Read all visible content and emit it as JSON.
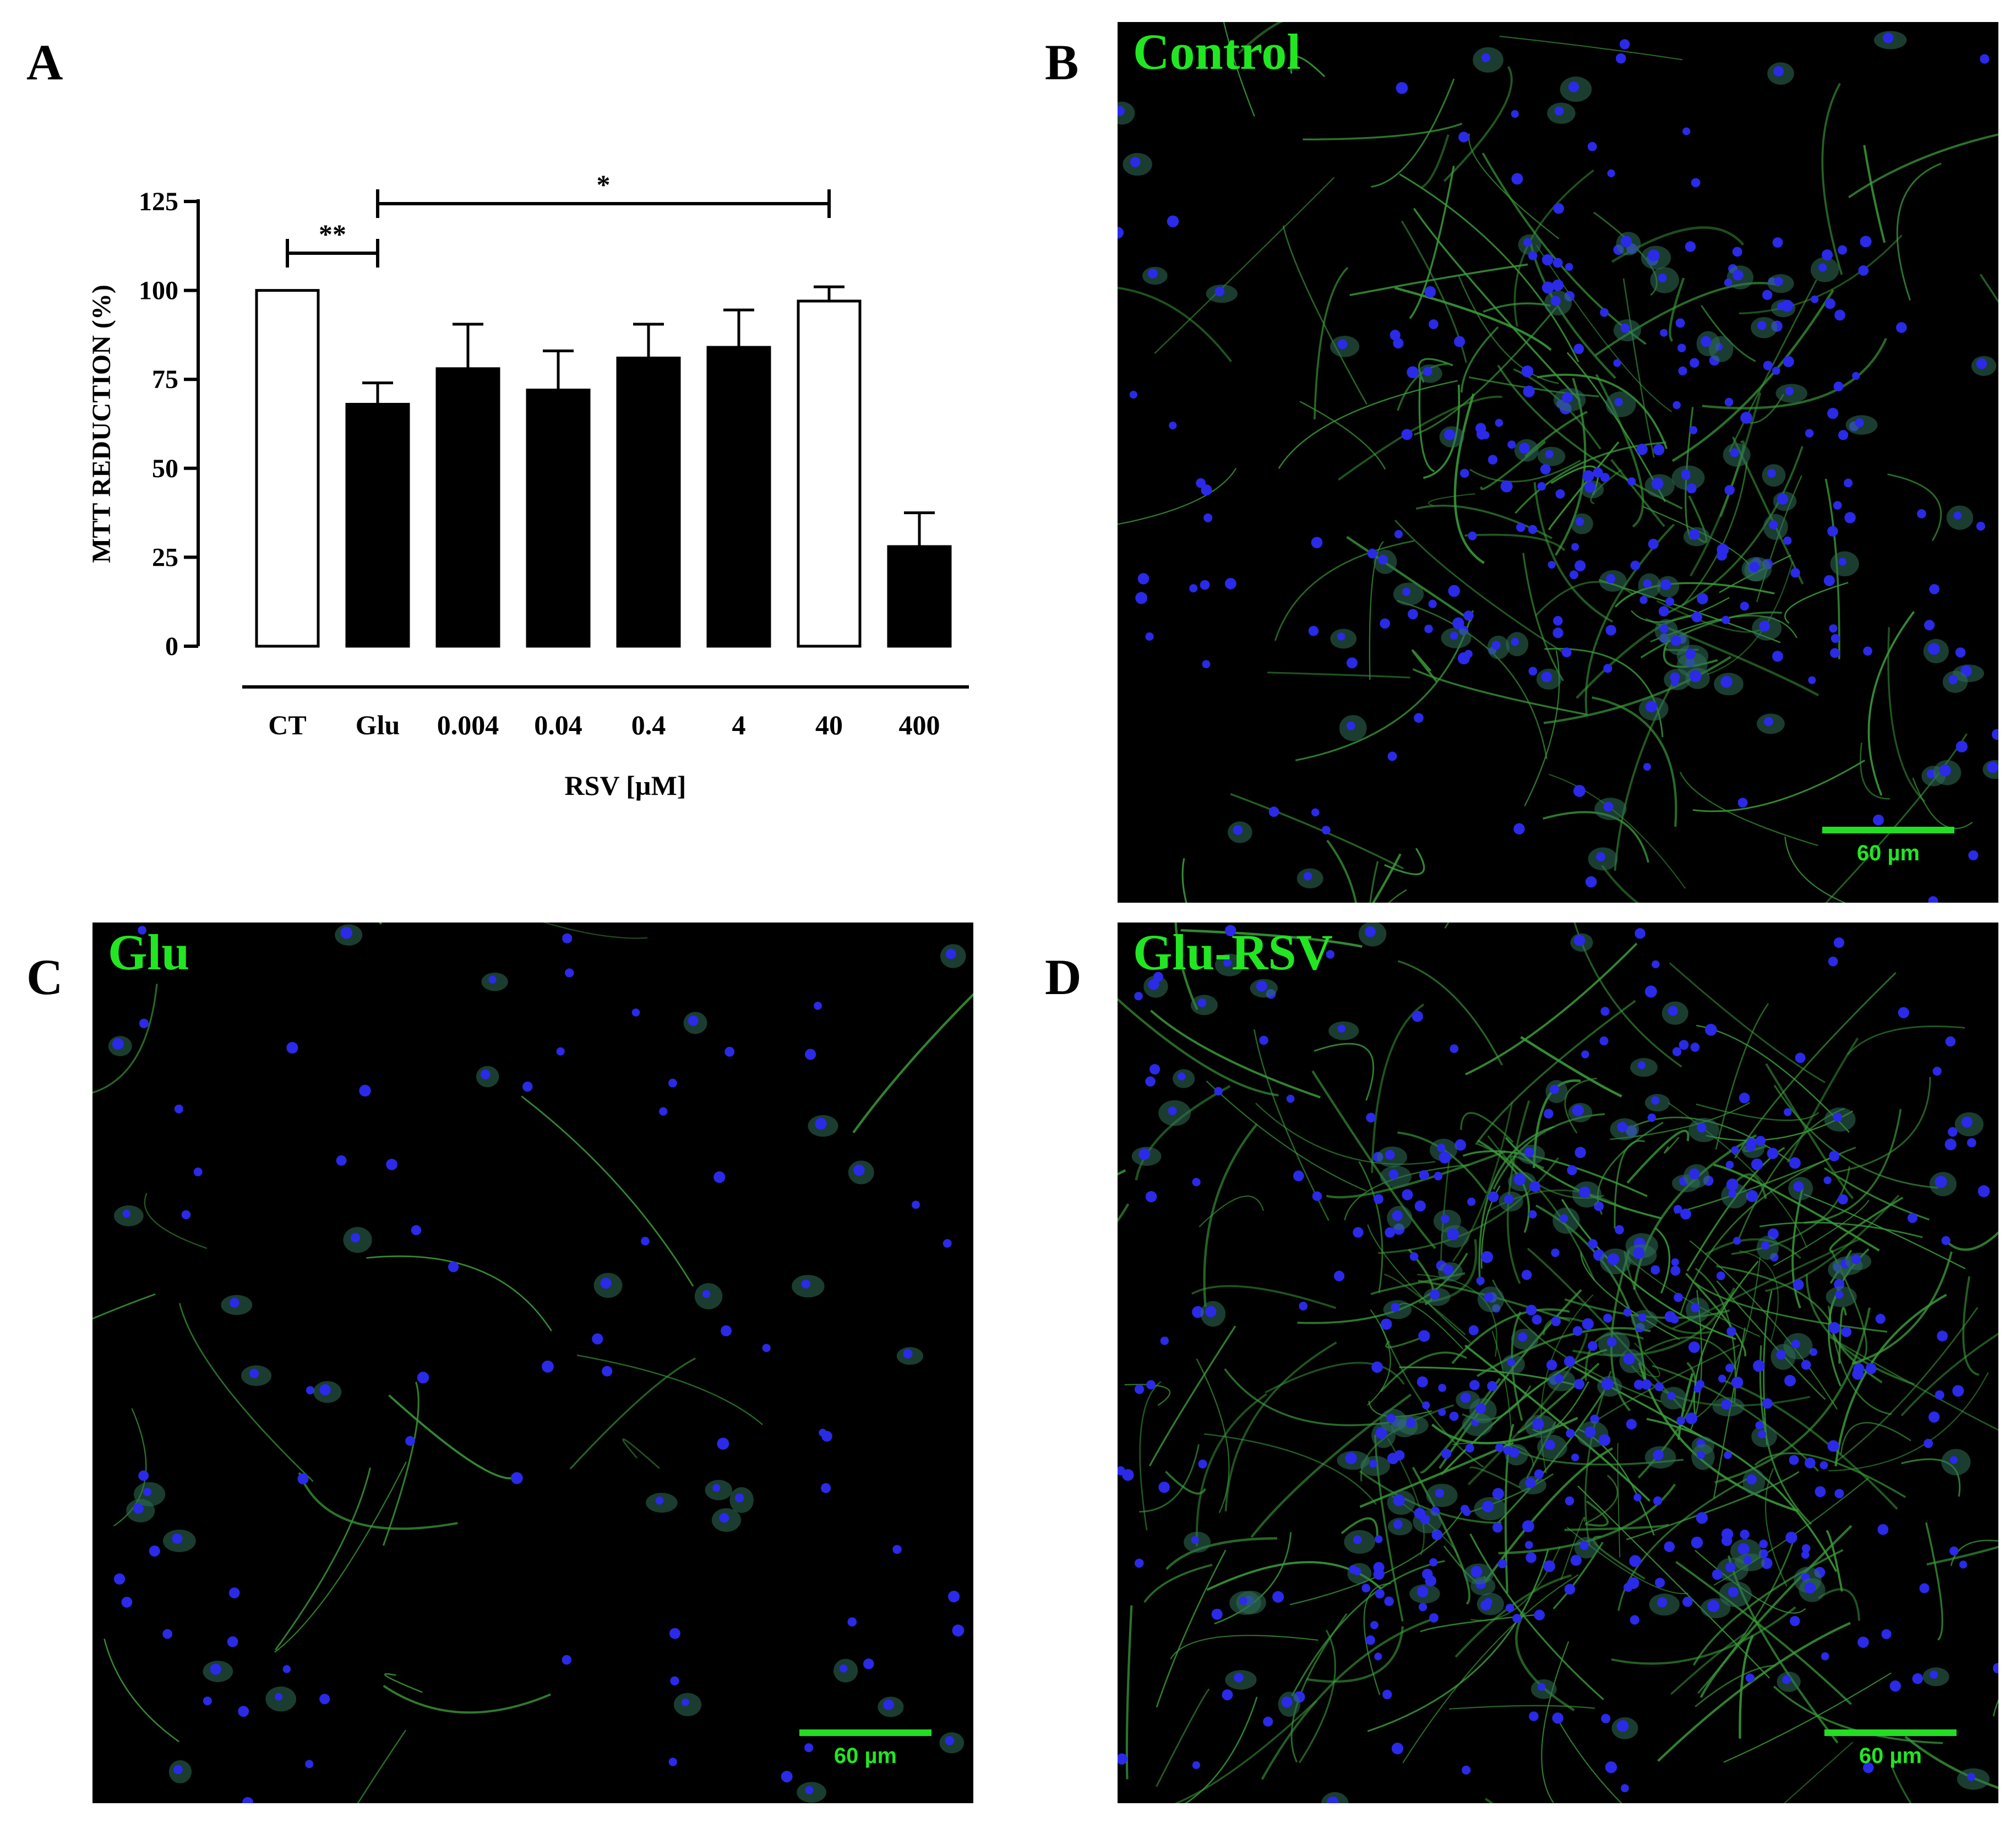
{
  "colors": {
    "micro_label": "#22e622",
    "nuclei": "#2a2ae8",
    "neurites": "#3a9a3a",
    "scalebar": "#22dd22"
  },
  "panels": {
    "A": {
      "letter": "A"
    },
    "B": {
      "letter": "B",
      "title": "Control",
      "scale": "60 µm",
      "density": "high"
    },
    "C": {
      "letter": "C",
      "title": "Glu",
      "scale": "60 µm",
      "density": "low"
    },
    "D": {
      "letter": "D",
      "title": "Glu-RSV",
      "scale": "60 µm",
      "density": "very high"
    }
  },
  "chart_data": {
    "type": "bar",
    "categories": [
      "CT",
      "Glu",
      "0.004",
      "0.04",
      "0.4",
      "4",
      "40",
      "400"
    ],
    "values": [
      100,
      68,
      78,
      72,
      81,
      84,
      97,
      28
    ],
    "errors": [
      0,
      6,
      12.5,
      11,
      9.5,
      10.5,
      4,
      9.5
    ],
    "bar_fill": [
      "white",
      "black",
      "black",
      "black",
      "black",
      "black",
      "white",
      "black"
    ],
    "ylabel": "MTT  REDUCTION (%)",
    "xlabel": "RSV [µM]",
    "ylim": [
      0,
      125
    ],
    "yticks": [
      0,
      25,
      50,
      75,
      100,
      125
    ],
    "annotations": [
      {
        "from": "CT",
        "to": "Glu",
        "label": "**"
      },
      {
        "from": "Glu",
        "to": "40",
        "label": "*"
      }
    ]
  }
}
